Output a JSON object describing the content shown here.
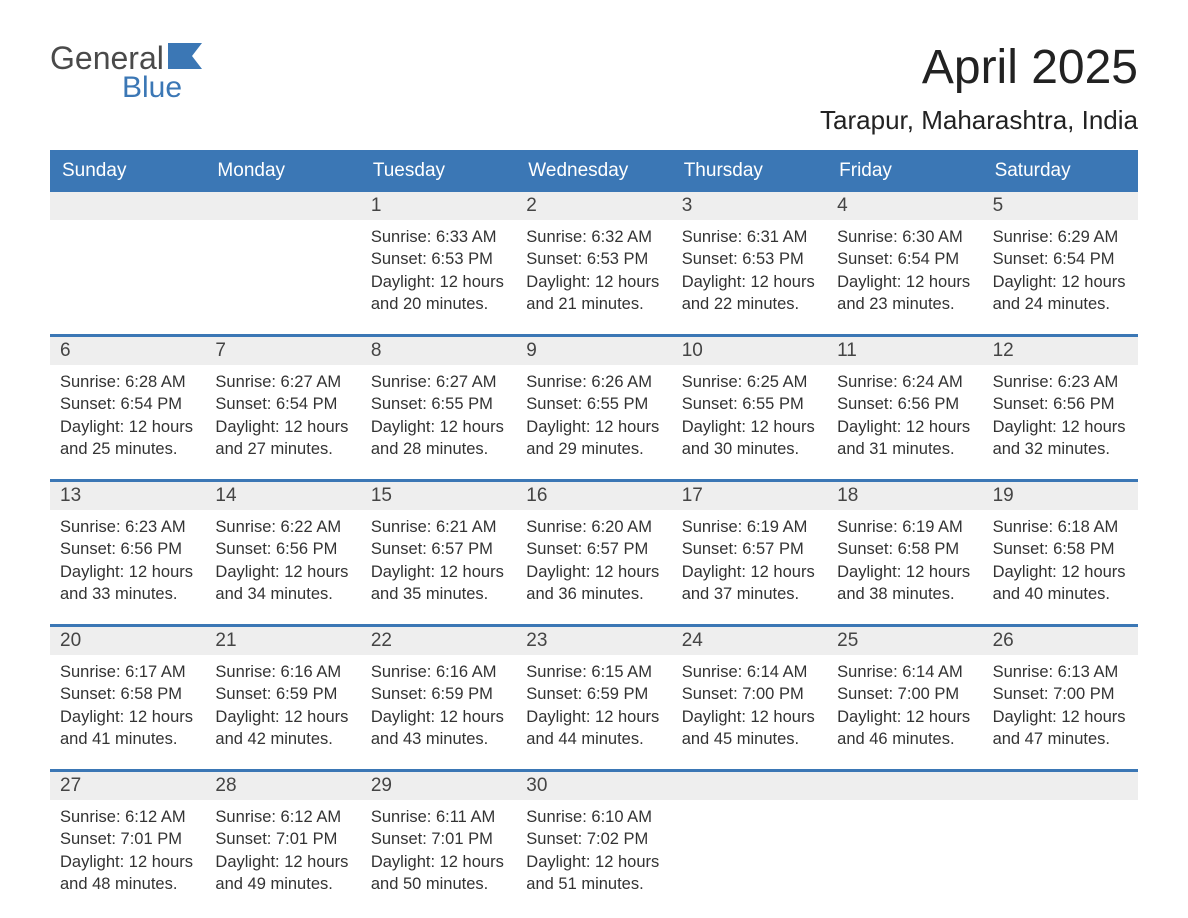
{
  "brand": {
    "top": "General",
    "bottom": "Blue",
    "flag_color": "#3b77b5"
  },
  "title": "April 2025",
  "location": "Tarapur, Maharashtra, India",
  "colors": {
    "header_bg": "#3b77b5",
    "header_text": "#ffffff",
    "daynum_bg": "#eeeeee",
    "body_text": "#333333",
    "page_bg": "#ffffff"
  },
  "layout": {
    "columns": 7,
    "rows": 5,
    "day_header_fontsize": 19,
    "body_fontsize": 16.5,
    "title_fontsize": 48,
    "location_fontsize": 26
  },
  "day_names": [
    "Sunday",
    "Monday",
    "Tuesday",
    "Wednesday",
    "Thursday",
    "Friday",
    "Saturday"
  ],
  "weeks": [
    [
      {
        "n": "",
        "sunrise": "",
        "sunset": "",
        "daylight": ""
      },
      {
        "n": "",
        "sunrise": "",
        "sunset": "",
        "daylight": ""
      },
      {
        "n": "1",
        "sunrise": "Sunrise: 6:33 AM",
        "sunset": "Sunset: 6:53 PM",
        "daylight": "Daylight: 12 hours and 20 minutes."
      },
      {
        "n": "2",
        "sunrise": "Sunrise: 6:32 AM",
        "sunset": "Sunset: 6:53 PM",
        "daylight": "Daylight: 12 hours and 21 minutes."
      },
      {
        "n": "3",
        "sunrise": "Sunrise: 6:31 AM",
        "sunset": "Sunset: 6:53 PM",
        "daylight": "Daylight: 12 hours and 22 minutes."
      },
      {
        "n": "4",
        "sunrise": "Sunrise: 6:30 AM",
        "sunset": "Sunset: 6:54 PM",
        "daylight": "Daylight: 12 hours and 23 minutes."
      },
      {
        "n": "5",
        "sunrise": "Sunrise: 6:29 AM",
        "sunset": "Sunset: 6:54 PM",
        "daylight": "Daylight: 12 hours and 24 minutes."
      }
    ],
    [
      {
        "n": "6",
        "sunrise": "Sunrise: 6:28 AM",
        "sunset": "Sunset: 6:54 PM",
        "daylight": "Daylight: 12 hours and 25 minutes."
      },
      {
        "n": "7",
        "sunrise": "Sunrise: 6:27 AM",
        "sunset": "Sunset: 6:54 PM",
        "daylight": "Daylight: 12 hours and 27 minutes."
      },
      {
        "n": "8",
        "sunrise": "Sunrise: 6:27 AM",
        "sunset": "Sunset: 6:55 PM",
        "daylight": "Daylight: 12 hours and 28 minutes."
      },
      {
        "n": "9",
        "sunrise": "Sunrise: 6:26 AM",
        "sunset": "Sunset: 6:55 PM",
        "daylight": "Daylight: 12 hours and 29 minutes."
      },
      {
        "n": "10",
        "sunrise": "Sunrise: 6:25 AM",
        "sunset": "Sunset: 6:55 PM",
        "daylight": "Daylight: 12 hours and 30 minutes."
      },
      {
        "n": "11",
        "sunrise": "Sunrise: 6:24 AM",
        "sunset": "Sunset: 6:56 PM",
        "daylight": "Daylight: 12 hours and 31 minutes."
      },
      {
        "n": "12",
        "sunrise": "Sunrise: 6:23 AM",
        "sunset": "Sunset: 6:56 PM",
        "daylight": "Daylight: 12 hours and 32 minutes."
      }
    ],
    [
      {
        "n": "13",
        "sunrise": "Sunrise: 6:23 AM",
        "sunset": "Sunset: 6:56 PM",
        "daylight": "Daylight: 12 hours and 33 minutes."
      },
      {
        "n": "14",
        "sunrise": "Sunrise: 6:22 AM",
        "sunset": "Sunset: 6:56 PM",
        "daylight": "Daylight: 12 hours and 34 minutes."
      },
      {
        "n": "15",
        "sunrise": "Sunrise: 6:21 AM",
        "sunset": "Sunset: 6:57 PM",
        "daylight": "Daylight: 12 hours and 35 minutes."
      },
      {
        "n": "16",
        "sunrise": "Sunrise: 6:20 AM",
        "sunset": "Sunset: 6:57 PM",
        "daylight": "Daylight: 12 hours and 36 minutes."
      },
      {
        "n": "17",
        "sunrise": "Sunrise: 6:19 AM",
        "sunset": "Sunset: 6:57 PM",
        "daylight": "Daylight: 12 hours and 37 minutes."
      },
      {
        "n": "18",
        "sunrise": "Sunrise: 6:19 AM",
        "sunset": "Sunset: 6:58 PM",
        "daylight": "Daylight: 12 hours and 38 minutes."
      },
      {
        "n": "19",
        "sunrise": "Sunrise: 6:18 AM",
        "sunset": "Sunset: 6:58 PM",
        "daylight": "Daylight: 12 hours and 40 minutes."
      }
    ],
    [
      {
        "n": "20",
        "sunrise": "Sunrise: 6:17 AM",
        "sunset": "Sunset: 6:58 PM",
        "daylight": "Daylight: 12 hours and 41 minutes."
      },
      {
        "n": "21",
        "sunrise": "Sunrise: 6:16 AM",
        "sunset": "Sunset: 6:59 PM",
        "daylight": "Daylight: 12 hours and 42 minutes."
      },
      {
        "n": "22",
        "sunrise": "Sunrise: 6:16 AM",
        "sunset": "Sunset: 6:59 PM",
        "daylight": "Daylight: 12 hours and 43 minutes."
      },
      {
        "n": "23",
        "sunrise": "Sunrise: 6:15 AM",
        "sunset": "Sunset: 6:59 PM",
        "daylight": "Daylight: 12 hours and 44 minutes."
      },
      {
        "n": "24",
        "sunrise": "Sunrise: 6:14 AM",
        "sunset": "Sunset: 7:00 PM",
        "daylight": "Daylight: 12 hours and 45 minutes."
      },
      {
        "n": "25",
        "sunrise": "Sunrise: 6:14 AM",
        "sunset": "Sunset: 7:00 PM",
        "daylight": "Daylight: 12 hours and 46 minutes."
      },
      {
        "n": "26",
        "sunrise": "Sunrise: 6:13 AM",
        "sunset": "Sunset: 7:00 PM",
        "daylight": "Daylight: 12 hours and 47 minutes."
      }
    ],
    [
      {
        "n": "27",
        "sunrise": "Sunrise: 6:12 AM",
        "sunset": "Sunset: 7:01 PM",
        "daylight": "Daylight: 12 hours and 48 minutes."
      },
      {
        "n": "28",
        "sunrise": "Sunrise: 6:12 AM",
        "sunset": "Sunset: 7:01 PM",
        "daylight": "Daylight: 12 hours and 49 minutes."
      },
      {
        "n": "29",
        "sunrise": "Sunrise: 6:11 AM",
        "sunset": "Sunset: 7:01 PM",
        "daylight": "Daylight: 12 hours and 50 minutes."
      },
      {
        "n": "30",
        "sunrise": "Sunrise: 6:10 AM",
        "sunset": "Sunset: 7:02 PM",
        "daylight": "Daylight: 12 hours and 51 minutes."
      },
      {
        "n": "",
        "sunrise": "",
        "sunset": "",
        "daylight": ""
      },
      {
        "n": "",
        "sunrise": "",
        "sunset": "",
        "daylight": ""
      },
      {
        "n": "",
        "sunrise": "",
        "sunset": "",
        "daylight": ""
      }
    ]
  ]
}
